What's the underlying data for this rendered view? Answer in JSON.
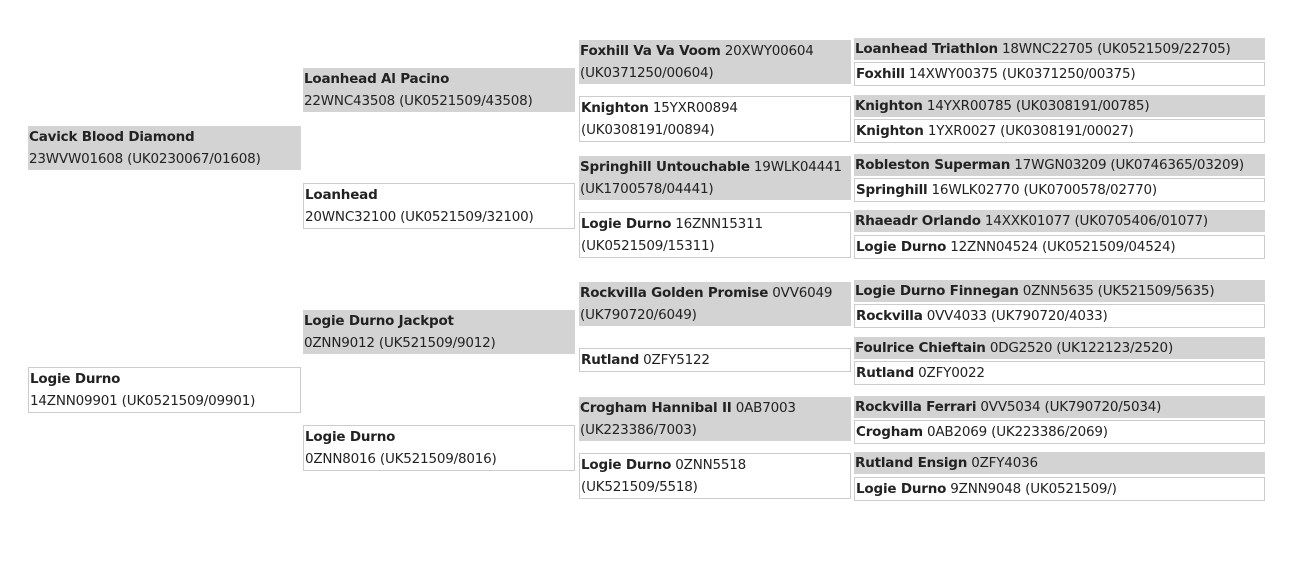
{
  "colors": {
    "sire_background": "#d3d3d3",
    "dam_border": "#cccccc",
    "text": "#222222"
  },
  "pedigree": {
    "generation1": [
      {
        "name": "Cavick Blood Diamond",
        "id": "23WVW01608 (UK0230067/01608)",
        "sex": "sire"
      },
      {
        "name": "Logie Durno",
        "id": "14ZNN09901 (UK0521509/09901)",
        "sex": "dam"
      }
    ],
    "generation2": [
      {
        "name": "Loanhead Al Pacino",
        "id": "22WNC43508 (UK0521509/43508)",
        "sex": "sire"
      },
      {
        "name": "Loanhead",
        "id": "20WNC32100 (UK0521509/32100)",
        "sex": "dam"
      },
      {
        "name": "Logie Durno Jackpot",
        "id": "0ZNN9012 (UK521509/9012)",
        "sex": "sire"
      },
      {
        "name": "Logie Durno",
        "id": "0ZNN8016 (UK521509/8016)",
        "sex": "dam"
      }
    ],
    "generation3": [
      {
        "name": "Foxhill Va Va Voom",
        "id": "20XWY00604 (UK0371250/00604)",
        "sex": "sire"
      },
      {
        "name": "Knighton",
        "id": "15YXR00894 (UK0308191/00894)",
        "sex": "dam"
      },
      {
        "name": "Springhill Untouchable",
        "id": "19WLK04441 (UK1700578/04441)",
        "sex": "sire"
      },
      {
        "name": "Logie Durno",
        "id": "16ZNN15311 (UK0521509/15311)",
        "sex": "dam"
      },
      {
        "name": "Rockvilla Golden Promise",
        "id": "0VV6049 (UK790720/6049)",
        "sex": "sire"
      },
      {
        "name": "Rutland",
        "id": "0ZFY5122",
        "sex": "dam"
      },
      {
        "name": "Crogham Hannibal II",
        "id": "0AB7003 (UK223386/7003)",
        "sex": "sire"
      },
      {
        "name": "Logie Durno",
        "id": "0ZNN5518 (UK521509/5518)",
        "sex": "dam"
      }
    ],
    "generation4": [
      {
        "name": "Loanhead Triathlon",
        "id": "18WNC22705 (UK0521509/22705)",
        "sex": "sire"
      },
      {
        "name": "Foxhill",
        "id": "14XWY00375 (UK0371250/00375)",
        "sex": "dam"
      },
      {
        "name": "Knighton",
        "id": "14YXR00785 (UK0308191/00785)",
        "sex": "sire"
      },
      {
        "name": "Knighton",
        "id": "1YXR0027 (UK0308191/00027)",
        "sex": "dam"
      },
      {
        "name": "Robleston Superman",
        "id": "17WGN03209 (UK0746365/03209)",
        "sex": "sire"
      },
      {
        "name": "Springhill",
        "id": "16WLK02770 (UK0700578/02770)",
        "sex": "dam"
      },
      {
        "name": "Rhaeadr Orlando",
        "id": "14XXK01077 (UK0705406/01077)",
        "sex": "sire"
      },
      {
        "name": "Logie Durno",
        "id": "12ZNN04524 (UK0521509/04524)",
        "sex": "dam"
      },
      {
        "name": "Logie Durno Finnegan",
        "id": "0ZNN5635 (UK521509/5635)",
        "sex": "sire"
      },
      {
        "name": "Rockvilla",
        "id": "0VV4033 (UK790720/4033)",
        "sex": "dam"
      },
      {
        "name": "Foulrice Chieftain",
        "id": "0DG2520 (UK122123/2520)",
        "sex": "sire"
      },
      {
        "name": "Rutland",
        "id": "0ZFY0022",
        "sex": "dam"
      },
      {
        "name": "Rockvilla Ferrari",
        "id": "0VV5034 (UK790720/5034)",
        "sex": "sire"
      },
      {
        "name": "Crogham",
        "id": "0AB2069 (UK223386/2069)",
        "sex": "dam"
      },
      {
        "name": "Rutland Ensign",
        "id": "0ZFY4036",
        "sex": "sire"
      },
      {
        "name": "Logie Durno",
        "id": "9ZNN9048 (UK0521509/)",
        "sex": "dam"
      }
    ]
  }
}
